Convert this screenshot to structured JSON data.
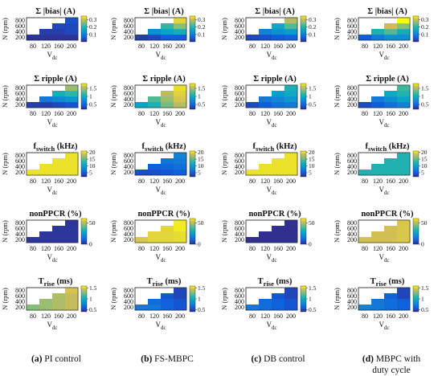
{
  "figure": {
    "captions": [
      {
        "letter": "(a)",
        "text": "PI control"
      },
      {
        "letter": "(b)",
        "text": "FS-MBPC"
      },
      {
        "letter": "(c)",
        "text": "DB control"
      },
      {
        "letter": "(d)",
        "text": "MBPC  with\nduty cycle"
      }
    ]
  },
  "axes": {
    "ylabel": "N (rpm)",
    "xlabel_main": "V",
    "xlabel_sub": "dc",
    "x_ticks": [
      "80",
      "120",
      "160",
      "200"
    ],
    "y_ticks": [
      "200",
      "400",
      "600",
      "800"
    ]
  },
  "metrics": [
    {
      "key": "bias",
      "title": "Σ |bias| (A)",
      "cbar_ticks": [
        "0.1",
        "0.2",
        "0.3"
      ],
      "range": [
        0,
        0.35
      ]
    },
    {
      "key": "ripple",
      "title": "Σ ripple (A)",
      "cbar_ticks": [
        "0.5",
        "1",
        "1.5"
      ],
      "range": [
        0.2,
        1.8
      ]
    },
    {
      "key": "fswitch",
      "title_main": "f",
      "title_sub": "switch",
      "title_rest": " (kHz)",
      "cbar_ticks": [
        "5",
        "10",
        "15",
        "20"
      ],
      "range": [
        2,
        21
      ]
    },
    {
      "key": "nonppcr",
      "title": "nonPPCR (%)",
      "cbar_ticks": [
        "0",
        "50"
      ],
      "range": [
        0,
        60
      ]
    },
    {
      "key": "trise",
      "title_main": "T",
      "title_sub": "rise",
      "title_rest": " (ms)",
      "cbar_ticks": [
        "0.5",
        "1",
        "1.5"
      ],
      "range": [
        0.4,
        1.6
      ]
    }
  ],
  "chart_data": {
    "type": "heatmap",
    "x": [
      80,
      120,
      160,
      200
    ],
    "y": [
      200,
      400,
      600,
      800
    ],
    "xlabel": "Vdc",
    "ylabel": "N (rpm)",
    "colormap": "parula",
    "note_layout": "lower-triangular operating region; null = not evaluated",
    "panels": [
      {
        "method": "PI control",
        "metric": "bias",
        "values": [
          [
            0.01,
            0.01,
            0.01,
            0.01
          ],
          [
            null,
            0.02,
            0.02,
            0.03
          ],
          [
            null,
            null,
            0.03,
            0.03
          ],
          [
            null,
            null,
            null,
            0.04
          ]
        ]
      },
      {
        "method": "FS-MBPC",
        "metric": "bias",
        "values": [
          [
            0.02,
            0.03,
            0.05,
            0.05
          ],
          [
            null,
            0.12,
            0.15,
            0.17
          ],
          [
            null,
            null,
            0.2,
            0.25
          ],
          [
            null,
            null,
            null,
            0.32
          ]
        ]
      },
      {
        "method": "DB control",
        "metric": "bias",
        "values": [
          [
            0.03,
            0.04,
            0.05,
            0.06
          ],
          [
            null,
            0.1,
            0.12,
            0.14
          ],
          [
            null,
            null,
            0.16,
            0.22
          ],
          [
            null,
            null,
            null,
            0.28
          ]
        ]
      },
      {
        "method": "MBPC with duty cycle",
        "metric": "bias",
        "values": [
          [
            0.05,
            0.09,
            0.12,
            0.12
          ],
          [
            null,
            0.18,
            0.22,
            0.17
          ],
          [
            null,
            null,
            0.3,
            0.25
          ],
          [
            null,
            null,
            null,
            0.35
          ]
        ]
      },
      {
        "method": "PI control",
        "metric": "ripple",
        "values": [
          [
            0.3,
            0.3,
            0.35,
            0.4
          ],
          [
            null,
            0.6,
            0.7,
            0.8
          ],
          [
            null,
            null,
            1.0,
            1.1
          ],
          [
            null,
            null,
            null,
            1.4
          ]
        ]
      },
      {
        "method": "FS-MBPC",
        "metric": "ripple",
        "values": [
          [
            0.9,
            1.0,
            1.3,
            1.5
          ],
          [
            null,
            1.2,
            1.4,
            1.6
          ],
          [
            null,
            null,
            1.5,
            1.65
          ],
          [
            null,
            null,
            null,
            1.7
          ]
        ]
      },
      {
        "method": "DB control",
        "metric": "ripple",
        "values": [
          [
            0.35,
            0.45,
            0.55,
            0.6
          ],
          [
            null,
            0.6,
            0.7,
            0.8
          ],
          [
            null,
            null,
            0.85,
            0.95
          ],
          [
            null,
            null,
            null,
            1.0
          ]
        ]
      },
      {
        "method": "MBPC with duty cycle",
        "metric": "ripple",
        "values": [
          [
            0.35,
            0.45,
            0.55,
            0.65
          ],
          [
            null,
            0.6,
            0.75,
            0.9
          ],
          [
            null,
            null,
            0.95,
            1.05
          ],
          [
            null,
            null,
            null,
            1.15
          ]
        ]
      },
      {
        "method": "PI control",
        "metric": "fswitch",
        "values": [
          [
            20,
            20,
            20,
            20
          ],
          [
            null,
            20,
            20,
            20
          ],
          [
            null,
            null,
            20,
            20
          ],
          [
            null,
            null,
            null,
            20
          ]
        ]
      },
      {
        "method": "FS-MBPC",
        "metric": "fswitch",
        "values": [
          [
            4,
            4,
            4.5,
            5
          ],
          [
            null,
            5,
            5.5,
            6
          ],
          [
            null,
            null,
            6.5,
            7
          ],
          [
            null,
            null,
            null,
            7.5
          ]
        ]
      },
      {
        "method": "DB control",
        "metric": "fswitch",
        "values": [
          [
            20,
            20,
            20,
            20
          ],
          [
            null,
            20,
            20,
            20
          ],
          [
            null,
            null,
            20,
            20
          ],
          [
            null,
            null,
            null,
            20
          ]
        ]
      },
      {
        "method": "MBPC with duty cycle",
        "metric": "fswitch",
        "values": [
          [
            12,
            12,
            12,
            12
          ],
          [
            null,
            12,
            12,
            12
          ],
          [
            null,
            null,
            12,
            12
          ],
          [
            null,
            null,
            null,
            12
          ]
        ]
      },
      {
        "method": "PI control",
        "metric": "nonppcr",
        "values": [
          [
            2,
            2,
            2,
            2
          ],
          [
            null,
            2,
            2,
            2
          ],
          [
            null,
            null,
            2,
            2
          ],
          [
            null,
            null,
            null,
            2
          ]
        ]
      },
      {
        "method": "FS-MBPC",
        "metric": "nonppcr",
        "values": [
          [
            53,
            55,
            55,
            56
          ],
          [
            null,
            55,
            55,
            56
          ],
          [
            null,
            null,
            55,
            58
          ],
          [
            null,
            null,
            null,
            58
          ]
        ]
      },
      {
        "method": "DB control",
        "metric": "nonppcr",
        "values": [
          [
            1,
            1,
            1,
            1
          ],
          [
            null,
            1,
            1,
            1
          ],
          [
            null,
            null,
            1,
            1
          ],
          [
            null,
            null,
            null,
            1
          ]
        ]
      },
      {
        "method": "MBPC with duty cycle",
        "metric": "nonppcr",
        "values": [
          [
            52,
            52,
            52,
            53
          ],
          [
            null,
            52,
            52,
            53
          ],
          [
            null,
            null,
            52,
            53
          ],
          [
            null,
            null,
            null,
            53
          ]
        ]
      },
      {
        "method": "PI control",
        "metric": "trise",
        "values": [
          [
            1.25,
            1.3,
            1.35,
            1.4
          ],
          [
            null,
            1.3,
            1.35,
            1.4
          ],
          [
            null,
            null,
            1.35,
            1.4
          ],
          [
            null,
            null,
            null,
            1.45
          ]
        ]
      },
      {
        "method": "FS-MBPC",
        "metric": "trise",
        "values": [
          [
            0.7,
            0.7,
            0.6,
            0.55
          ],
          [
            null,
            0.65,
            0.6,
            0.55
          ],
          [
            null,
            null,
            0.55,
            0.5
          ],
          [
            null,
            null,
            null,
            0.5
          ]
        ]
      },
      {
        "method": "DB control",
        "metric": "trise",
        "values": [
          [
            0.7,
            0.65,
            0.6,
            0.55
          ],
          [
            null,
            0.65,
            0.6,
            0.55
          ],
          [
            null,
            null,
            0.55,
            0.5
          ],
          [
            null,
            null,
            null,
            0.5
          ]
        ]
      },
      {
        "method": "MBPC with duty cycle",
        "metric": "trise",
        "values": [
          [
            0.75,
            0.7,
            0.65,
            0.6
          ],
          [
            null,
            0.7,
            0.65,
            0.6
          ],
          [
            null,
            null,
            0.6,
            0.5
          ],
          [
            null,
            null,
            null,
            0.5
          ]
        ]
      }
    ]
  }
}
